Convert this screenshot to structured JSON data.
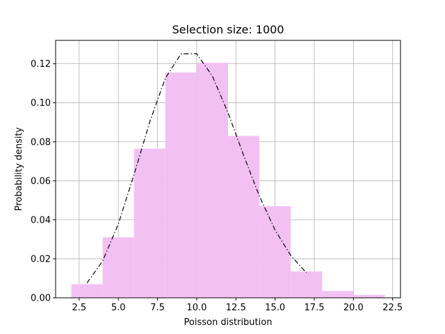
{
  "chart_data": {
    "type": "bar",
    "title": "Selection size: 1000",
    "xlabel": "Poisson distribution",
    "ylabel": "Probability density",
    "xlim": [
      1.0,
      23.0
    ],
    "ylim": [
      0.0,
      0.132
    ],
    "xticks": [
      2.5,
      5.0,
      7.5,
      10.0,
      12.5,
      15.0,
      17.5,
      20.0,
      22.5
    ],
    "xtick_labels": [
      "2.5",
      "5.0",
      "7.5",
      "10.0",
      "12.5",
      "15.0",
      "17.5",
      "20.0",
      "22.5"
    ],
    "yticks": [
      0.0,
      0.02,
      0.04,
      0.06,
      0.08,
      0.1,
      0.12
    ],
    "ytick_labels": [
      "0.00",
      "0.02",
      "0.04",
      "0.06",
      "0.08",
      "0.10",
      "0.12"
    ],
    "grid": true,
    "histogram": {
      "bin_edges": [
        2,
        4,
        6,
        8,
        10,
        12,
        14,
        16,
        18,
        20,
        22
      ],
      "density": [
        0.007,
        0.031,
        0.0765,
        0.1155,
        0.1205,
        0.083,
        0.047,
        0.0135,
        0.0035,
        0.0015
      ],
      "color": "#f3c0f4"
    },
    "pmf_curve": {
      "x": [
        3,
        4,
        5,
        6,
        7,
        8,
        9,
        10,
        11,
        12,
        13,
        14,
        15,
        16,
        17
      ],
      "y": [
        0.0076,
        0.0189,
        0.0378,
        0.0631,
        0.0901,
        0.1126,
        0.1251,
        0.1251,
        0.1137,
        0.0948,
        0.0729,
        0.0521,
        0.0347,
        0.0217,
        0.0128
      ],
      "color": "#000000",
      "style": "dash-dot"
    }
  }
}
